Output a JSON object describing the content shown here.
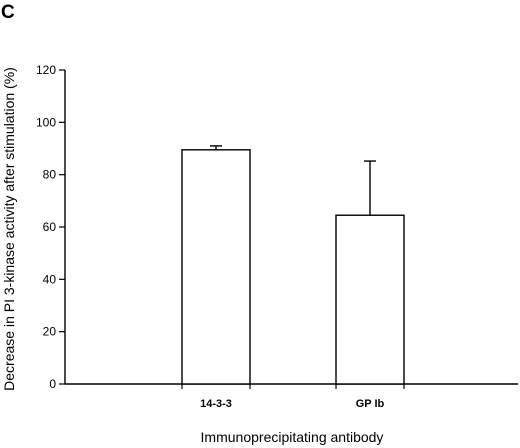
{
  "panel_label": "C",
  "chart_data": {
    "type": "bar",
    "categories": [
      "14-3-3",
      "GP Ib"
    ],
    "values": [
      89.5,
      64.5
    ],
    "error_upper": [
      1.5,
      20.7
    ],
    "xlabel": "Immunoprecipitating antibody",
    "ylabel": "Decrease in PI 3-kinase activity after stimulation (%)",
    "ylim": [
      0,
      120
    ],
    "yticks": [
      0,
      20,
      40,
      60,
      80,
      100,
      120
    ],
    "grid": false,
    "legend": "none",
    "bar_fill": "#ffffff",
    "bar_edge": "#000000"
  }
}
